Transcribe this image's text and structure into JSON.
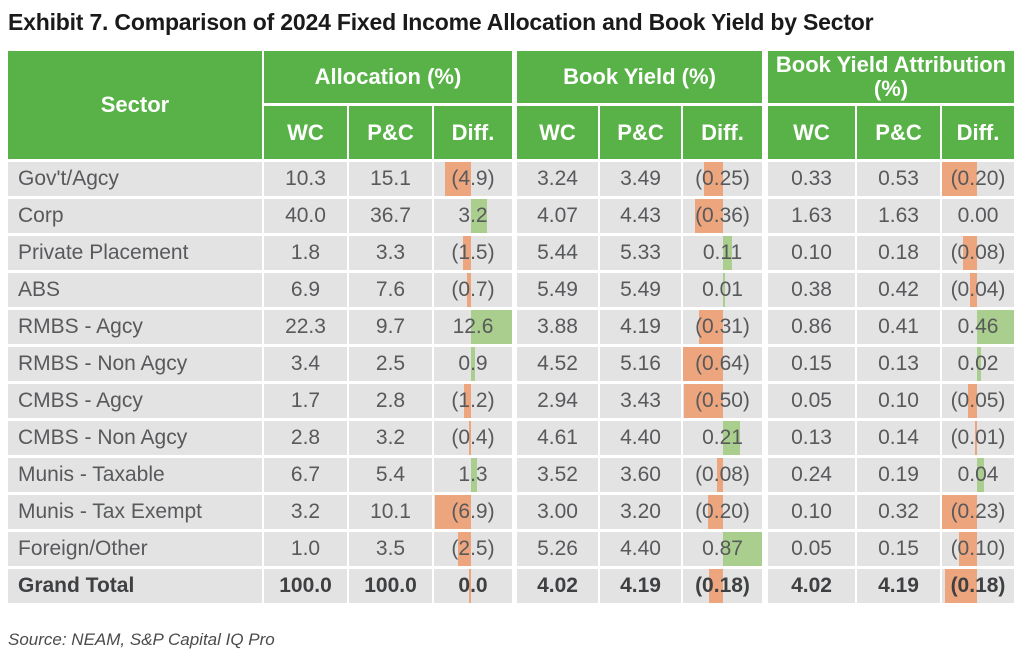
{
  "title": "Exhibit 7. Comparison of 2024 Fixed Income Allocation and Book Yield by Sector",
  "source": "Source: NEAM, S&P Capital IQ Pro",
  "colors": {
    "header_green": "#58B247",
    "row_bg": "#E3E3E4",
    "neg_bar": "#EDA57E",
    "pos_bar": "#A9CE8E",
    "text": "#58595B",
    "total_text": "#3F4042",
    "title_text": "#1A1A1A"
  },
  "table": {
    "sector_header": "Sector",
    "groups": [
      {
        "label": "Allocation (%)",
        "columns": [
          "WC",
          "P&C",
          "Diff."
        ]
      },
      {
        "label": "Book Yield (%)",
        "columns": [
          "WC",
          "P&C",
          "Diff."
        ]
      },
      {
        "label": "Book Yield Attribution (%)",
        "columns": [
          "WC",
          "P&C",
          "Diff."
        ]
      }
    ],
    "rows": [
      {
        "sector": "Gov't/Agcy",
        "cells": [
          "10.3",
          "15.1",
          {
            "text": "(4.9)",
            "value": -4.9
          },
          "3.24",
          "3.49",
          {
            "text": "(0.25)",
            "value": -0.25
          },
          "0.33",
          "0.53",
          {
            "text": "(0.20)",
            "value": -0.2
          }
        ]
      },
      {
        "sector": "Corp",
        "cells": [
          "40.0",
          "36.7",
          {
            "text": "3.2",
            "value": 3.2
          },
          "4.07",
          "4.43",
          {
            "text": "(0.36)",
            "value": -0.36
          },
          "1.63",
          "1.63",
          {
            "text": "0.00",
            "value": 0
          }
        ]
      },
      {
        "sector": "Private Placement",
        "cells": [
          "1.8",
          "3.3",
          {
            "text": "(1.5)",
            "value": -1.5
          },
          "5.44",
          "5.33",
          {
            "text": "0.11",
            "value": 0.11
          },
          "0.10",
          "0.18",
          {
            "text": "(0.08)",
            "value": -0.08
          }
        ]
      },
      {
        "sector": "ABS",
        "cells": [
          "6.9",
          "7.6",
          {
            "text": "(0.7)",
            "value": -0.7
          },
          "5.49",
          "5.49",
          {
            "text": "0.01",
            "value": 0.01
          },
          "0.38",
          "0.42",
          {
            "text": "(0.04)",
            "value": -0.04
          }
        ]
      },
      {
        "sector": "RMBS - Agcy",
        "cells": [
          "22.3",
          "9.7",
          {
            "text": "12.6",
            "value": 12.6
          },
          "3.88",
          "4.19",
          {
            "text": "(0.31)",
            "value": -0.31
          },
          "0.86",
          "0.41",
          {
            "text": "0.46",
            "value": 0.46
          }
        ]
      },
      {
        "sector": "RMBS - Non Agcy",
        "cells": [
          "3.4",
          "2.5",
          {
            "text": "0.9",
            "value": 0.9
          },
          "4.52",
          "5.16",
          {
            "text": "(0.64)",
            "value": -0.64
          },
          "0.15",
          "0.13",
          {
            "text": "0.02",
            "value": 0.02
          }
        ]
      },
      {
        "sector": "CMBS - Agcy",
        "cells": [
          "1.7",
          "2.8",
          {
            "text": "(1.2)",
            "value": -1.2
          },
          "2.94",
          "3.43",
          {
            "text": "(0.50)",
            "value": -0.5
          },
          "0.05",
          "0.10",
          {
            "text": "(0.05)",
            "value": -0.05
          }
        ]
      },
      {
        "sector": "CMBS - Non Agcy",
        "cells": [
          "2.8",
          "3.2",
          {
            "text": "(0.4)",
            "value": -0.4
          },
          "4.61",
          "4.40",
          {
            "text": "0.21",
            "value": 0.21
          },
          "0.13",
          "0.14",
          {
            "text": "(0.01)",
            "value": -0.01
          }
        ]
      },
      {
        "sector": "Munis - Taxable",
        "cells": [
          "6.7",
          "5.4",
          {
            "text": "1.3",
            "value": 1.3
          },
          "3.52",
          "3.60",
          {
            "text": "(0.08)",
            "value": -0.08
          },
          "0.24",
          "0.19",
          {
            "text": "0.04",
            "value": 0.04
          }
        ]
      },
      {
        "sector": "Munis - Tax Exempt",
        "cells": [
          "3.2",
          "10.1",
          {
            "text": "(6.9)",
            "value": -6.9
          },
          "3.00",
          "3.20",
          {
            "text": "(0.20)",
            "value": -0.2
          },
          "0.10",
          "0.32",
          {
            "text": "(0.23)",
            "value": -0.23
          }
        ]
      },
      {
        "sector": "Foreign/Other",
        "cells": [
          "1.0",
          "3.5",
          {
            "text": "(2.5)",
            "value": -2.5
          },
          "5.26",
          "4.40",
          {
            "text": "0.87",
            "value": 0.87
          },
          "0.05",
          "0.15",
          {
            "text": "(0.10)",
            "value": -0.1
          }
        ]
      }
    ],
    "total": {
      "sector": "Grand Total",
      "cells": [
        "100.0",
        "100.0",
        {
          "text": "0.0",
          "value": 0,
          "bar": "neg"
        },
        "4.02",
        "4.19",
        {
          "text": "(0.18)",
          "value": -0.18
        },
        "4.02",
        "4.19",
        {
          "text": "(0.18)",
          "value": -0.18
        }
      ]
    }
  }
}
